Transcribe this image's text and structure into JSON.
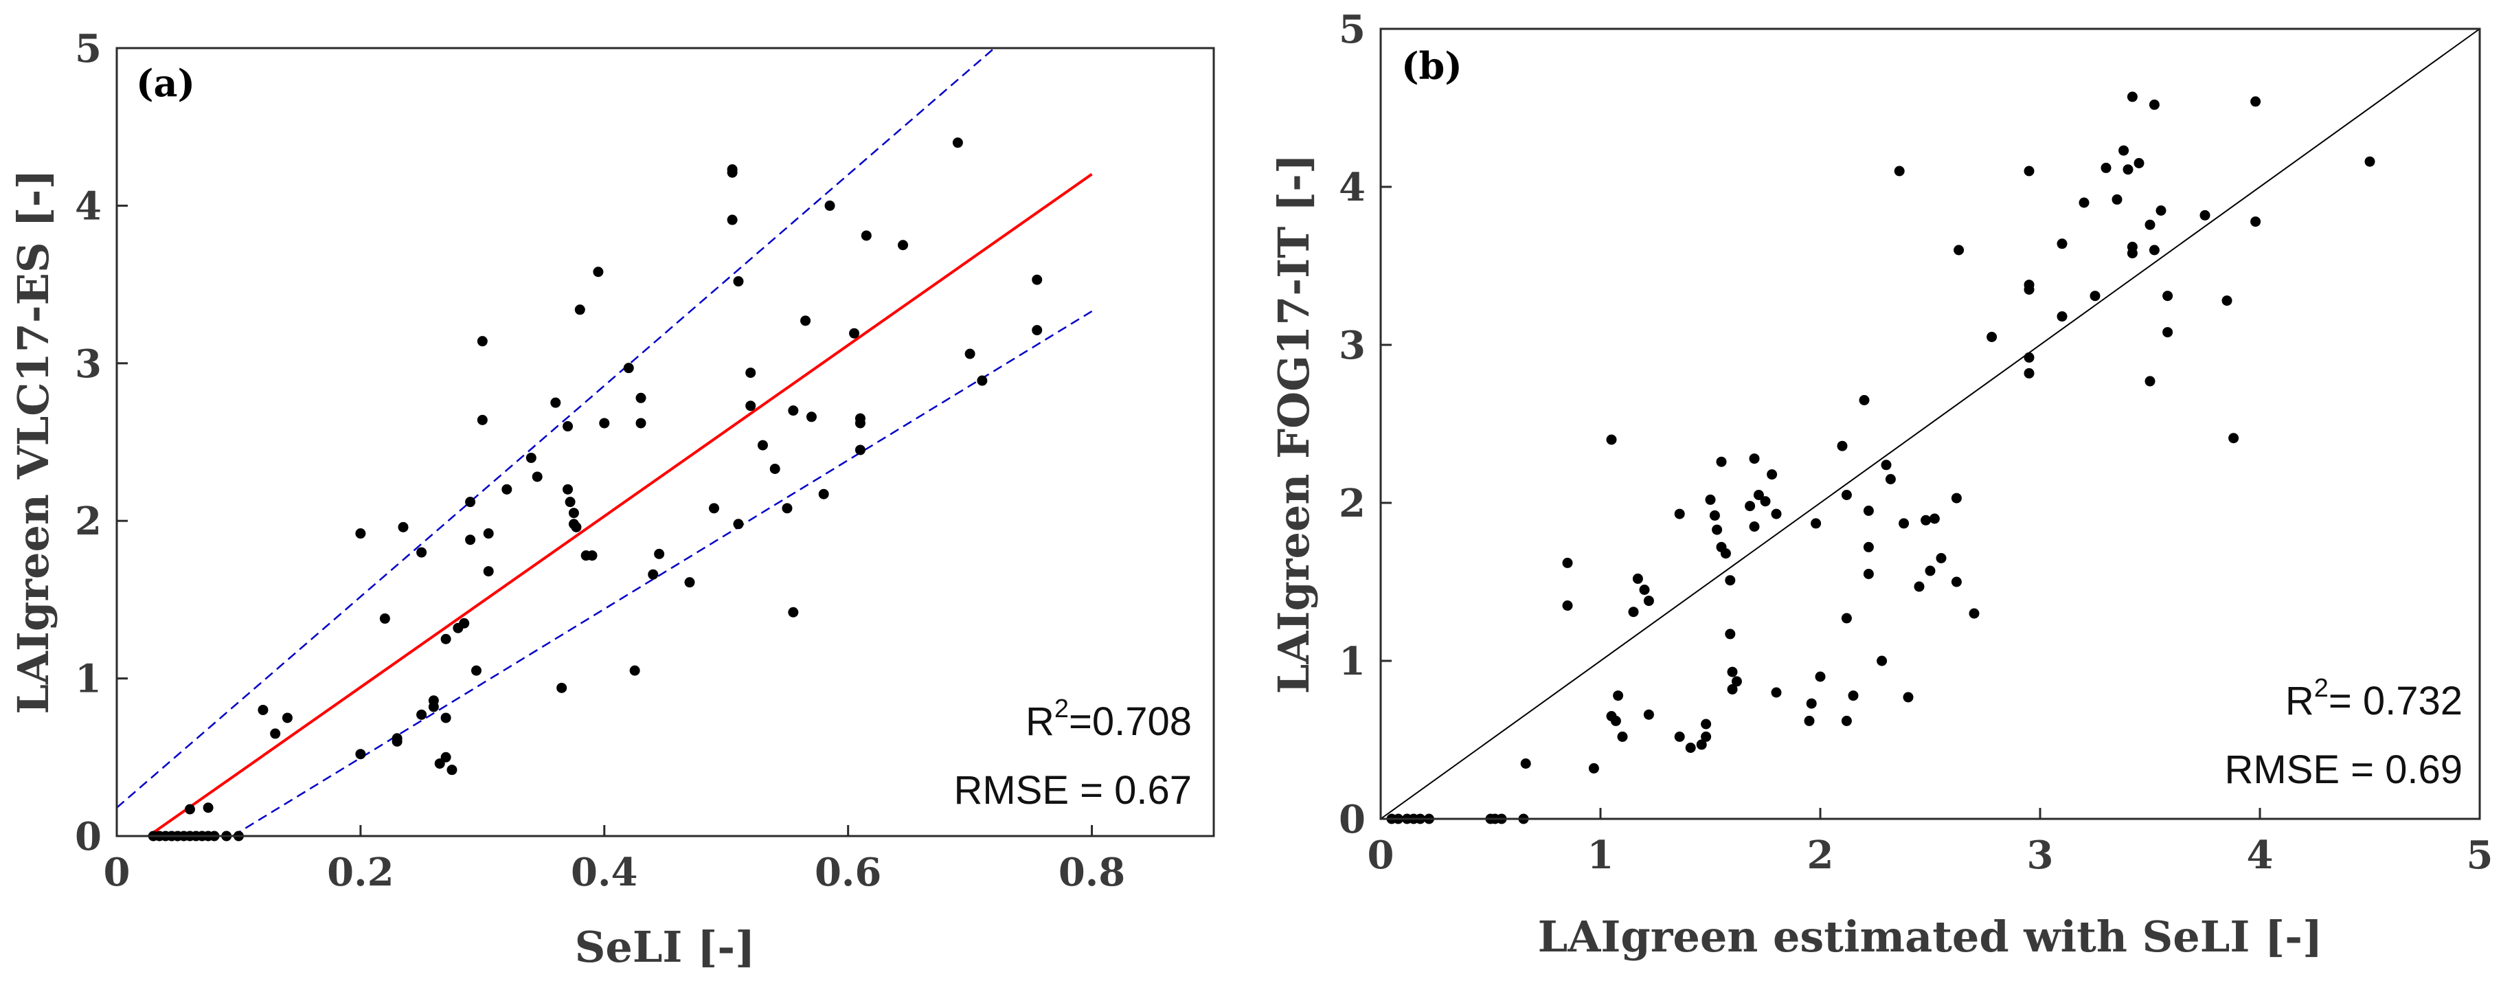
{
  "chart_data": [
    {
      "type": "scatter",
      "panel": "(a)",
      "xlabel": "SeLI [-]",
      "ylabel": "LAIgreen VLC17-ES [-]",
      "xlim": [
        0,
        0.9
      ],
      "ylim": [
        0,
        5
      ],
      "xticks": [
        "0",
        "0.2",
        "0.4",
        "0.6",
        "0.8"
      ],
      "xtick_values": [
        0,
        0.2,
        0.4,
        0.6,
        0.8
      ],
      "yticks": [
        "0",
        "1",
        "2",
        "3",
        "4",
        "5"
      ],
      "ytick_values": [
        0,
        1,
        2,
        3,
        4,
        5
      ],
      "r2_label": "R",
      "r2_sup": "2",
      "r2_value": "=0.708",
      "rmse": "RMSE = 0.67",
      "fit_line": {
        "x": [
          0.026,
          0.8
        ],
        "y": [
          0,
          4.2
        ],
        "color": "#ff0000"
      },
      "confidence_bands": [
        {
          "x": [
            0,
            0.72
          ],
          "y": [
            0.18,
            5.0
          ],
          "color": "#0000c8"
        },
        {
          "x": [
            0.095,
            0.8
          ],
          "y": [
            0,
            3.33
          ],
          "color": "#0000c8"
        }
      ],
      "points": [
        [
          0.03,
          0.0
        ],
        [
          0.035,
          0.0
        ],
        [
          0.04,
          0.0
        ],
        [
          0.045,
          0.0
        ],
        [
          0.05,
          0.0
        ],
        [
          0.055,
          0.0
        ],
        [
          0.06,
          0.0
        ],
        [
          0.065,
          0.0
        ],
        [
          0.07,
          0.0
        ],
        [
          0.075,
          0.0
        ],
        [
          0.08,
          0.0
        ],
        [
          0.09,
          0.0
        ],
        [
          0.1,
          0.0
        ],
        [
          0.06,
          0.17
        ],
        [
          0.075,
          0.18
        ],
        [
          0.12,
          0.8
        ],
        [
          0.13,
          0.65
        ],
        [
          0.14,
          0.75
        ],
        [
          0.2,
          1.92
        ],
        [
          0.2,
          0.52
        ],
        [
          0.22,
          1.38
        ],
        [
          0.23,
          0.62
        ],
        [
          0.23,
          0.6
        ],
        [
          0.235,
          1.96
        ],
        [
          0.25,
          1.8
        ],
        [
          0.25,
          0.77
        ],
        [
          0.26,
          0.86
        ],
        [
          0.26,
          0.82
        ],
        [
          0.265,
          0.46
        ],
        [
          0.27,
          0.5
        ],
        [
          0.27,
          0.75
        ],
        [
          0.27,
          1.25
        ],
        [
          0.275,
          0.42
        ],
        [
          0.28,
          1.32
        ],
        [
          0.285,
          1.35
        ],
        [
          0.29,
          2.12
        ],
        [
          0.29,
          1.88
        ],
        [
          0.295,
          1.05
        ],
        [
          0.3,
          3.14
        ],
        [
          0.3,
          2.64
        ],
        [
          0.305,
          1.92
        ],
        [
          0.305,
          1.68
        ],
        [
          0.32,
          2.2
        ],
        [
          0.34,
          2.4
        ],
        [
          0.345,
          2.28
        ],
        [
          0.36,
          2.75
        ],
        [
          0.365,
          0.94
        ],
        [
          0.37,
          2.6
        ],
        [
          0.37,
          2.2
        ],
        [
          0.372,
          2.12
        ],
        [
          0.375,
          2.05
        ],
        [
          0.375,
          1.98
        ],
        [
          0.377,
          1.96
        ],
        [
          0.38,
          3.34
        ],
        [
          0.385,
          1.78
        ],
        [
          0.39,
          1.78
        ],
        [
          0.395,
          3.58
        ],
        [
          0.4,
          2.62
        ],
        [
          0.42,
          2.97
        ],
        [
          0.425,
          1.05
        ],
        [
          0.43,
          2.78
        ],
        [
          0.43,
          2.62
        ],
        [
          0.44,
          1.66
        ],
        [
          0.445,
          1.79
        ],
        [
          0.47,
          1.61
        ],
        [
          0.49,
          2.08
        ],
        [
          0.505,
          4.21
        ],
        [
          0.505,
          4.23
        ],
        [
          0.505,
          3.91
        ],
        [
          0.51,
          3.52
        ],
        [
          0.51,
          1.98
        ],
        [
          0.52,
          2.73
        ],
        [
          0.52,
          2.94
        ],
        [
          0.53,
          2.48
        ],
        [
          0.54,
          2.33
        ],
        [
          0.55,
          2.08
        ],
        [
          0.555,
          2.7
        ],
        [
          0.555,
          1.42
        ],
        [
          0.565,
          3.27
        ],
        [
          0.57,
          2.66
        ],
        [
          0.58,
          2.17
        ],
        [
          0.585,
          4.0
        ],
        [
          0.605,
          3.19
        ],
        [
          0.61,
          2.65
        ],
        [
          0.61,
          2.62
        ],
        [
          0.61,
          2.45
        ],
        [
          0.615,
          3.81
        ],
        [
          0.645,
          3.75
        ],
        [
          0.69,
          4.4
        ],
        [
          0.7,
          3.06
        ],
        [
          0.71,
          2.89
        ],
        [
          0.755,
          3.53
        ],
        [
          0.755,
          3.21
        ]
      ]
    },
    {
      "type": "scatter",
      "panel": "(b)",
      "xlabel": "LAIgreen estimated with SeLI [-]",
      "ylabel": "LAIgreen FOG17-IT [-]",
      "xlim": [
        0,
        5
      ],
      "ylim": [
        0,
        5
      ],
      "xticks": [
        "0",
        "1",
        "2",
        "3",
        "4",
        "5"
      ],
      "xtick_values": [
        0,
        1,
        2,
        3,
        4,
        5
      ],
      "yticks": [
        "0",
        "1",
        "2",
        "3",
        "4",
        "5"
      ],
      "ytick_values": [
        0,
        1,
        2,
        3,
        4,
        5
      ],
      "r2_label": "R",
      "r2_sup": "2",
      "r2_value": "= 0.732",
      "rmse": "RMSE = 0.69",
      "fit_line": {
        "x": [
          0,
          5
        ],
        "y": [
          0,
          5
        ],
        "color": "#000000"
      },
      "points": [
        [
          0.05,
          0.0
        ],
        [
          0.08,
          0.0
        ],
        [
          0.12,
          0.0
        ],
        [
          0.15,
          0.0
        ],
        [
          0.18,
          0.0
        ],
        [
          0.22,
          0.0
        ],
        [
          0.5,
          0.0
        ],
        [
          0.52,
          0.0
        ],
        [
          0.55,
          0.0
        ],
        [
          0.65,
          0.0
        ],
        [
          0.66,
          0.35
        ],
        [
          0.85,
          1.62
        ],
        [
          0.85,
          1.35
        ],
        [
          0.97,
          0.32
        ],
        [
          1.05,
          2.4
        ],
        [
          1.05,
          0.65
        ],
        [
          1.07,
          0.62
        ],
        [
          1.08,
          0.78
        ],
        [
          1.1,
          0.52
        ],
        [
          1.15,
          1.31
        ],
        [
          1.17,
          1.52
        ],
        [
          1.2,
          1.45
        ],
        [
          1.22,
          1.38
        ],
        [
          1.22,
          0.66
        ],
        [
          1.36,
          1.93
        ],
        [
          1.36,
          0.52
        ],
        [
          1.41,
          0.45
        ],
        [
          1.46,
          0.47
        ],
        [
          1.48,
          0.52
        ],
        [
          1.48,
          0.6
        ],
        [
          1.5,
          2.02
        ],
        [
          1.52,
          1.92
        ],
        [
          1.53,
          1.83
        ],
        [
          1.55,
          2.26
        ],
        [
          1.55,
          1.72
        ],
        [
          1.57,
          1.68
        ],
        [
          1.59,
          1.51
        ],
        [
          1.59,
          1.17
        ],
        [
          1.6,
          0.93
        ],
        [
          1.6,
          0.82
        ],
        [
          1.62,
          0.87
        ],
        [
          1.68,
          1.98
        ],
        [
          1.7,
          2.28
        ],
        [
          1.7,
          1.85
        ],
        [
          1.72,
          2.05
        ],
        [
          1.75,
          2.01
        ],
        [
          1.78,
          2.18
        ],
        [
          1.8,
          0.8
        ],
        [
          1.8,
          1.93
        ],
        [
          1.95,
          0.62
        ],
        [
          1.96,
          0.73
        ],
        [
          1.98,
          1.87
        ],
        [
          2.0,
          0.9
        ],
        [
          2.1,
          2.36
        ],
        [
          2.12,
          2.05
        ],
        [
          2.12,
          1.27
        ],
        [
          2.12,
          0.62
        ],
        [
          2.15,
          0.78
        ],
        [
          2.2,
          2.65
        ],
        [
          2.22,
          1.95
        ],
        [
          2.22,
          1.72
        ],
        [
          2.22,
          1.55
        ],
        [
          2.28,
          1.0
        ],
        [
          2.3,
          2.24
        ],
        [
          2.32,
          2.15
        ],
        [
          2.36,
          4.1
        ],
        [
          2.38,
          1.87
        ],
        [
          2.4,
          0.77
        ],
        [
          2.45,
          1.47
        ],
        [
          2.48,
          1.89
        ],
        [
          2.5,
          1.57
        ],
        [
          2.52,
          1.9
        ],
        [
          2.55,
          1.65
        ],
        [
          2.62,
          2.03
        ],
        [
          2.62,
          1.5
        ],
        [
          2.63,
          3.6
        ],
        [
          2.7,
          1.3
        ],
        [
          2.78,
          3.05
        ],
        [
          2.95,
          4.1
        ],
        [
          2.95,
          3.38
        ],
        [
          2.95,
          3.35
        ],
        [
          2.95,
          2.92
        ],
        [
          2.95,
          2.82
        ],
        [
          3.1,
          3.64
        ],
        [
          3.1,
          3.18
        ],
        [
          3.2,
          3.9
        ],
        [
          3.25,
          3.31
        ],
        [
          3.3,
          4.12
        ],
        [
          3.35,
          3.92
        ],
        [
          3.38,
          4.23
        ],
        [
          3.4,
          4.11
        ],
        [
          3.42,
          4.57
        ],
        [
          3.42,
          3.62
        ],
        [
          3.42,
          3.58
        ],
        [
          3.45,
          4.15
        ],
        [
          3.5,
          3.76
        ],
        [
          3.5,
          2.77
        ],
        [
          3.52,
          3.6
        ],
        [
          3.52,
          4.52
        ],
        [
          3.55,
          3.85
        ],
        [
          3.58,
          3.31
        ],
        [
          3.58,
          3.08
        ],
        [
          3.75,
          3.82
        ],
        [
          3.85,
          3.28
        ],
        [
          3.88,
          2.41
        ],
        [
          3.98,
          4.54
        ],
        [
          3.98,
          3.78
        ],
        [
          4.5,
          4.16
        ]
      ]
    }
  ]
}
